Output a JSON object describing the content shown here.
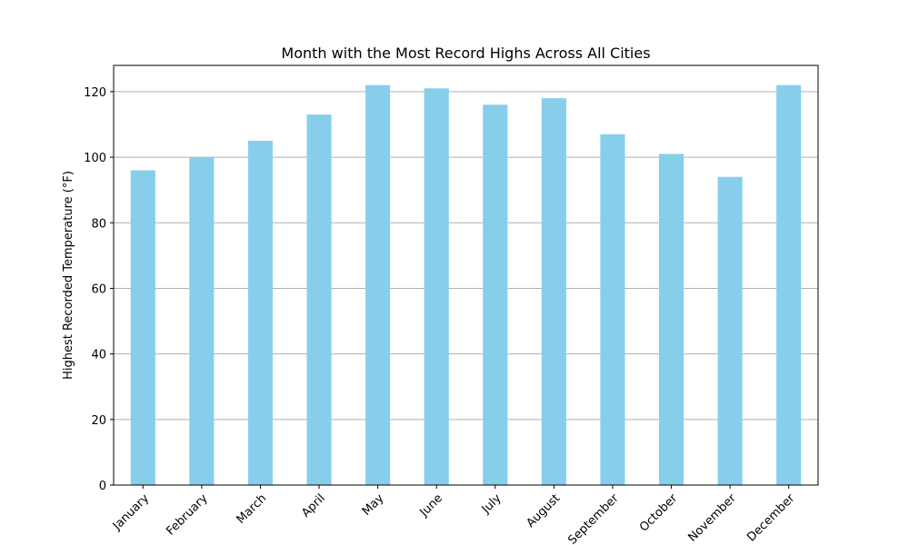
{
  "chart_data": {
    "type": "bar",
    "title": "Month with the Most Record Highs Across All Cities",
    "xlabel": "",
    "ylabel": "Highest Recorded Temperature (°F)",
    "categories": [
      "January",
      "February",
      "March",
      "April",
      "May",
      "June",
      "July",
      "August",
      "September",
      "October",
      "November",
      "December"
    ],
    "values": [
      96,
      100,
      105,
      113,
      122,
      121,
      116,
      118,
      107,
      101,
      94,
      122
    ],
    "ylim": [
      0,
      128
    ],
    "yticks": [
      0,
      20,
      40,
      60,
      80,
      100,
      120
    ],
    "grid": "horizontal",
    "xtick_rotation": 45,
    "colors": {
      "bar": "#87ceeb",
      "grid": "#b0b0b0",
      "axis": "#000000"
    }
  }
}
